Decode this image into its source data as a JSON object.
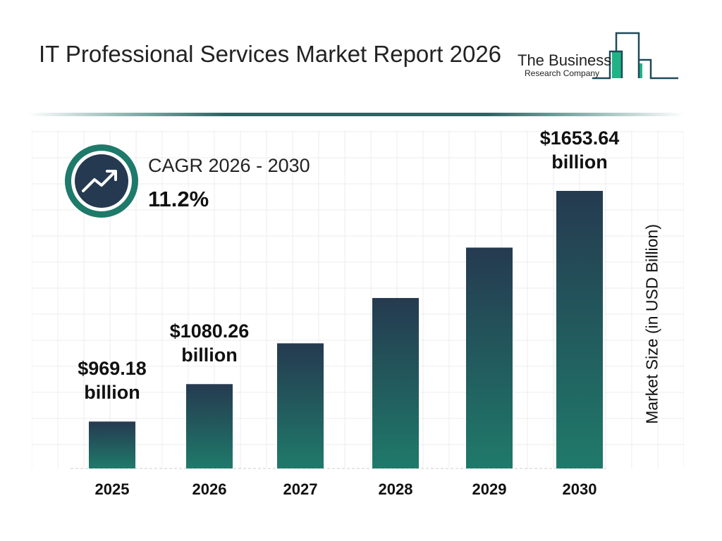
{
  "header": {
    "title": "IT Professional Services Market Report 2026",
    "logo_text": [
      "The Business",
      "Research Company"
    ]
  },
  "cagr": {
    "label": "CAGR 2026 - 2030",
    "value": "11.2%",
    "icon": "trending-up-icon"
  },
  "colors": {
    "bar_top": "#253a50",
    "bar_bottom": "#1f7a6a",
    "accent": "#1e6b63",
    "logo_green": "#21b386"
  },
  "chart_data": {
    "type": "bar",
    "categories": [
      "2025",
      "2026",
      "2027",
      "2028",
      "2029",
      "2030"
    ],
    "values": [
      969.18,
      1080.26,
      1201.3,
      1335.8,
      1485.4,
      1653.64
    ],
    "data_labels": [
      {
        "value": "$969.18",
        "unit": "billion"
      },
      {
        "value": "$1080.26",
        "unit": "billion"
      },
      null,
      null,
      null,
      {
        "value": "$1653.64",
        "unit": "billion"
      }
    ],
    "ylabel": "Market Size (in USD Billion)",
    "grid": true
  }
}
